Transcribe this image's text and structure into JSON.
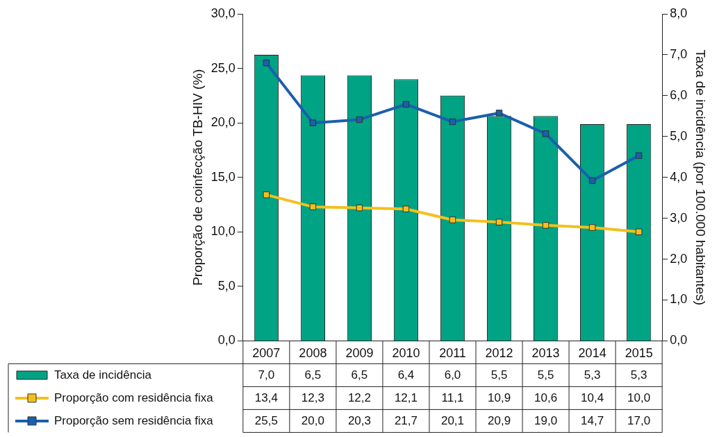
{
  "chart_data": {
    "type": "bar",
    "categories": [
      "2007",
      "2008",
      "2009",
      "2010",
      "2011",
      "2012",
      "2013",
      "2014",
      "2015"
    ],
    "ylabel": "Proporção de coinfecção TB-HIV (%)",
    "y2label": "Taxa de incidência (por 100.000 habitantes)",
    "ylim": [
      0,
      30
    ],
    "yticks": [
      {
        "value": 0,
        "label": "0,0"
      },
      {
        "value": 5,
        "label": "5,0"
      },
      {
        "value": 10,
        "label": "10,0"
      },
      {
        "value": 15,
        "label": "15,0"
      },
      {
        "value": 20,
        "label": "20,0"
      },
      {
        "value": 25,
        "label": "25,0"
      },
      {
        "value": 30,
        "label": "30,0"
      }
    ],
    "y2lim": [
      0,
      8
    ],
    "y2ticks": [
      {
        "value": 0,
        "label": "0,0"
      },
      {
        "value": 1,
        "label": "1,0"
      },
      {
        "value": 2,
        "label": "2,0"
      },
      {
        "value": 3,
        "label": "3,0"
      },
      {
        "value": 4,
        "label": "4,0"
      },
      {
        "value": 5,
        "label": "5,0"
      },
      {
        "value": 6,
        "label": "6,0"
      },
      {
        "value": 7,
        "label": "7,0"
      },
      {
        "value": 8,
        "label": "8,0"
      }
    ],
    "grid": false,
    "legend": "bottom",
    "marker": "square",
    "line_style": "solid",
    "series": [
      {
        "name": "Taxa de incidência",
        "axis": "y2",
        "color": "#00a383",
        "values": [
          7.0,
          6.5,
          6.5,
          6.4,
          6.0,
          5.5,
          5.5,
          5.3,
          5.3
        ],
        "value_labels": [
          "7,0",
          "6,5",
          "6,5",
          "6,4",
          "6,0",
          "5,5",
          "5,5",
          "5,3",
          "5,3"
        ]
      },
      {
        "name": "Proporção com residência fixa",
        "type": "line",
        "color": "#f2c01e",
        "values": [
          13.4,
          12.3,
          12.2,
          12.1,
          11.1,
          10.9,
          10.6,
          10.4,
          10.0
        ],
        "value_labels": [
          "13,4",
          "12,3",
          "12,2",
          "12,1",
          "11,1",
          "10,9",
          "10,6",
          "10,4",
          "10,0"
        ]
      },
      {
        "name": "Proporção sem residência fixa",
        "type": "line",
        "color": "#1a5fae",
        "values": [
          25.5,
          20.0,
          20.3,
          21.7,
          20.1,
          20.9,
          19.0,
          14.7,
          17.0
        ],
        "value_labels": [
          "25,5",
          "20,0",
          "20,3",
          "21,7",
          "20,1",
          "20,9",
          "19,0",
          "14,7",
          "17,0"
        ]
      }
    ]
  }
}
